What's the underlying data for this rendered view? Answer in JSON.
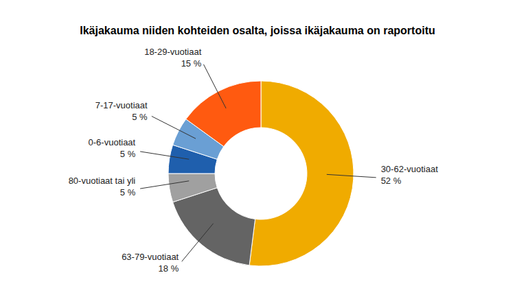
{
  "chart_data": {
    "type": "pie",
    "title": "Ikäjakauma niiden kohteiden osalta, joissa ikäjakauma on raportoitu",
    "categories": [
      "30-62-vuotiaat",
      "63-79-vuotiaat",
      "80-vuotiaat tai yli",
      "0-6-vuotiaat",
      "7-17-vuotiaat",
      "18-29-vuotiaat"
    ],
    "values": [
      52,
      18,
      5,
      5,
      5,
      15
    ],
    "value_labels": [
      "52 %",
      "18 %",
      "5 %",
      "5 %",
      "5 %",
      "15 %"
    ],
    "colors": [
      "#F0AB00",
      "#646464",
      "#A0A0A0",
      "#1F5FAD",
      "#6A9FD4",
      "#FF5A10"
    ],
    "data_labels": true
  }
}
